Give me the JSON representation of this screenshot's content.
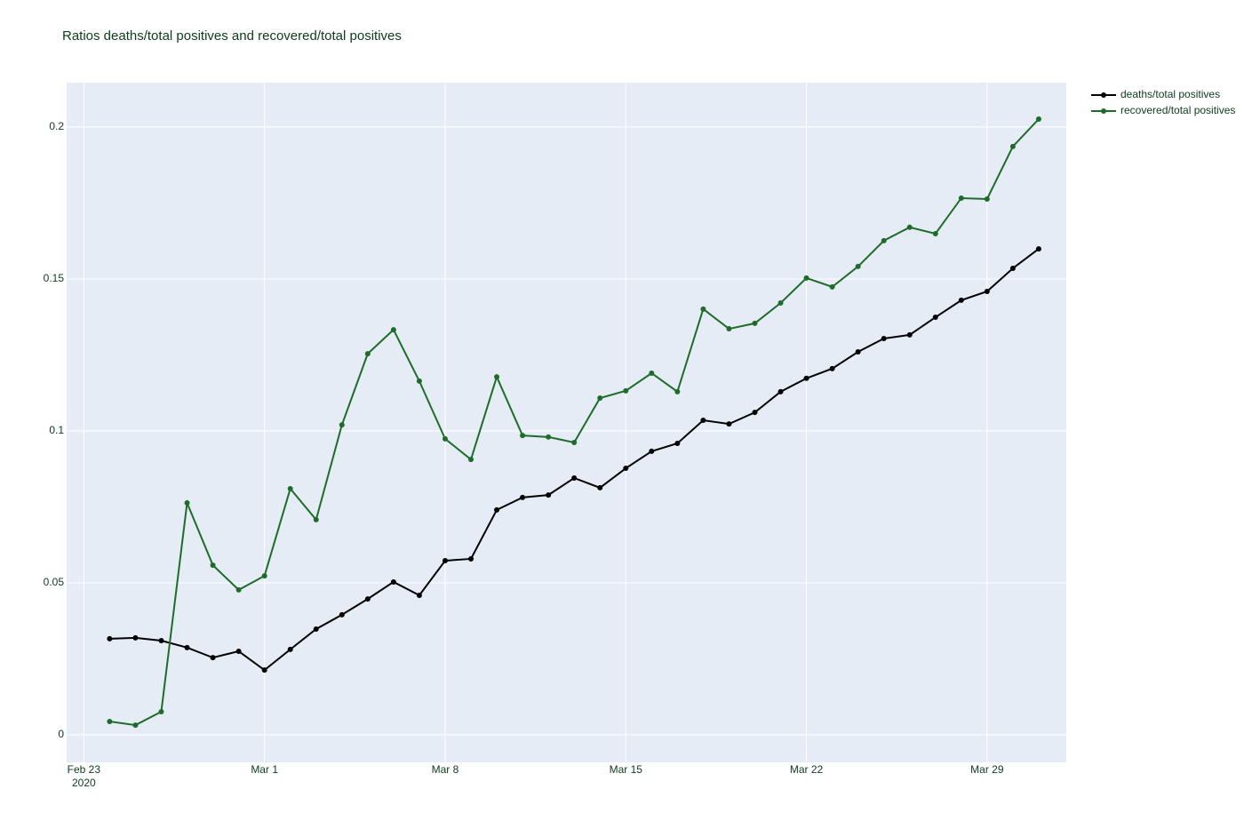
{
  "chart_data": {
    "type": "line",
    "title": "Ratios deaths/total positives and recovered/total positives",
    "x": [
      "2020-02-24",
      "2020-02-25",
      "2020-02-26",
      "2020-02-27",
      "2020-02-28",
      "2020-02-29",
      "2020-03-01",
      "2020-03-02",
      "2020-03-03",
      "2020-03-04",
      "2020-03-05",
      "2020-03-06",
      "2020-03-07",
      "2020-03-08",
      "2020-03-09",
      "2020-03-10",
      "2020-03-11",
      "2020-03-12",
      "2020-03-13",
      "2020-03-14",
      "2020-03-15",
      "2020-03-16",
      "2020-03-17",
      "2020-03-18",
      "2020-03-19",
      "2020-03-20",
      "2020-03-21",
      "2020-03-22",
      "2020-03-23",
      "2020-03-24",
      "2020-03-25",
      "2020-03-26",
      "2020-03-27",
      "2020-03-28",
      "2020-03-29",
      "2020-03-30",
      "2020-03-31"
    ],
    "series": [
      {
        "name": "deaths/total positives",
        "color": "#000000",
        "values": [
          0.0316,
          0.0319,
          0.031,
          0.0287,
          0.0254,
          0.0275,
          0.0213,
          0.0281,
          0.0348,
          0.0395,
          0.0447,
          0.0503,
          0.0459,
          0.0573,
          0.0579,
          0.074,
          0.0781,
          0.0789,
          0.0845,
          0.0813,
          0.0877,
          0.0933,
          0.0959,
          0.1035,
          0.1023,
          0.1061,
          0.1129,
          0.1173,
          0.1205,
          0.126,
          0.1304,
          0.1316,
          0.1374,
          0.143,
          0.1459,
          0.1535,
          0.1599
        ]
      },
      {
        "name": "recovered/total positives",
        "color": "#1f6b2a",
        "values": [
          0.0044,
          0.0032,
          0.0076,
          0.0763,
          0.0558,
          0.0477,
          0.0523,
          0.081,
          0.0708,
          0.102,
          0.1254,
          0.1333,
          0.1164,
          0.0974,
          0.0906,
          0.1178,
          0.0985,
          0.098,
          0.0962,
          0.1108,
          0.1132,
          0.119,
          0.1129,
          0.1401,
          0.1336,
          0.1354,
          0.1421,
          0.1503,
          0.1474,
          0.1541,
          0.1626,
          0.167,
          0.1649,
          0.1766,
          0.1763,
          0.1936,
          0.2026
        ]
      }
    ],
    "xlim": [
      "2020-02-22T08:00Z",
      "2020-04-01T01:40Z"
    ],
    "xticks": [
      {
        "value": "2020-02-23",
        "label": "Feb 23\n2020"
      },
      {
        "value": "2020-03-01",
        "label": "Mar 1"
      },
      {
        "value": "2020-03-08",
        "label": "Mar 8"
      },
      {
        "value": "2020-03-15",
        "label": "Mar 15"
      },
      {
        "value": "2020-03-22",
        "label": "Mar 22"
      },
      {
        "value": "2020-03-29",
        "label": "Mar 29"
      }
    ],
    "ylim": [
      -0.00906,
      0.2146
    ],
    "yticks": [
      0,
      0.05,
      0.1,
      0.15,
      0.2
    ],
    "grid": true,
    "legend": "right"
  }
}
